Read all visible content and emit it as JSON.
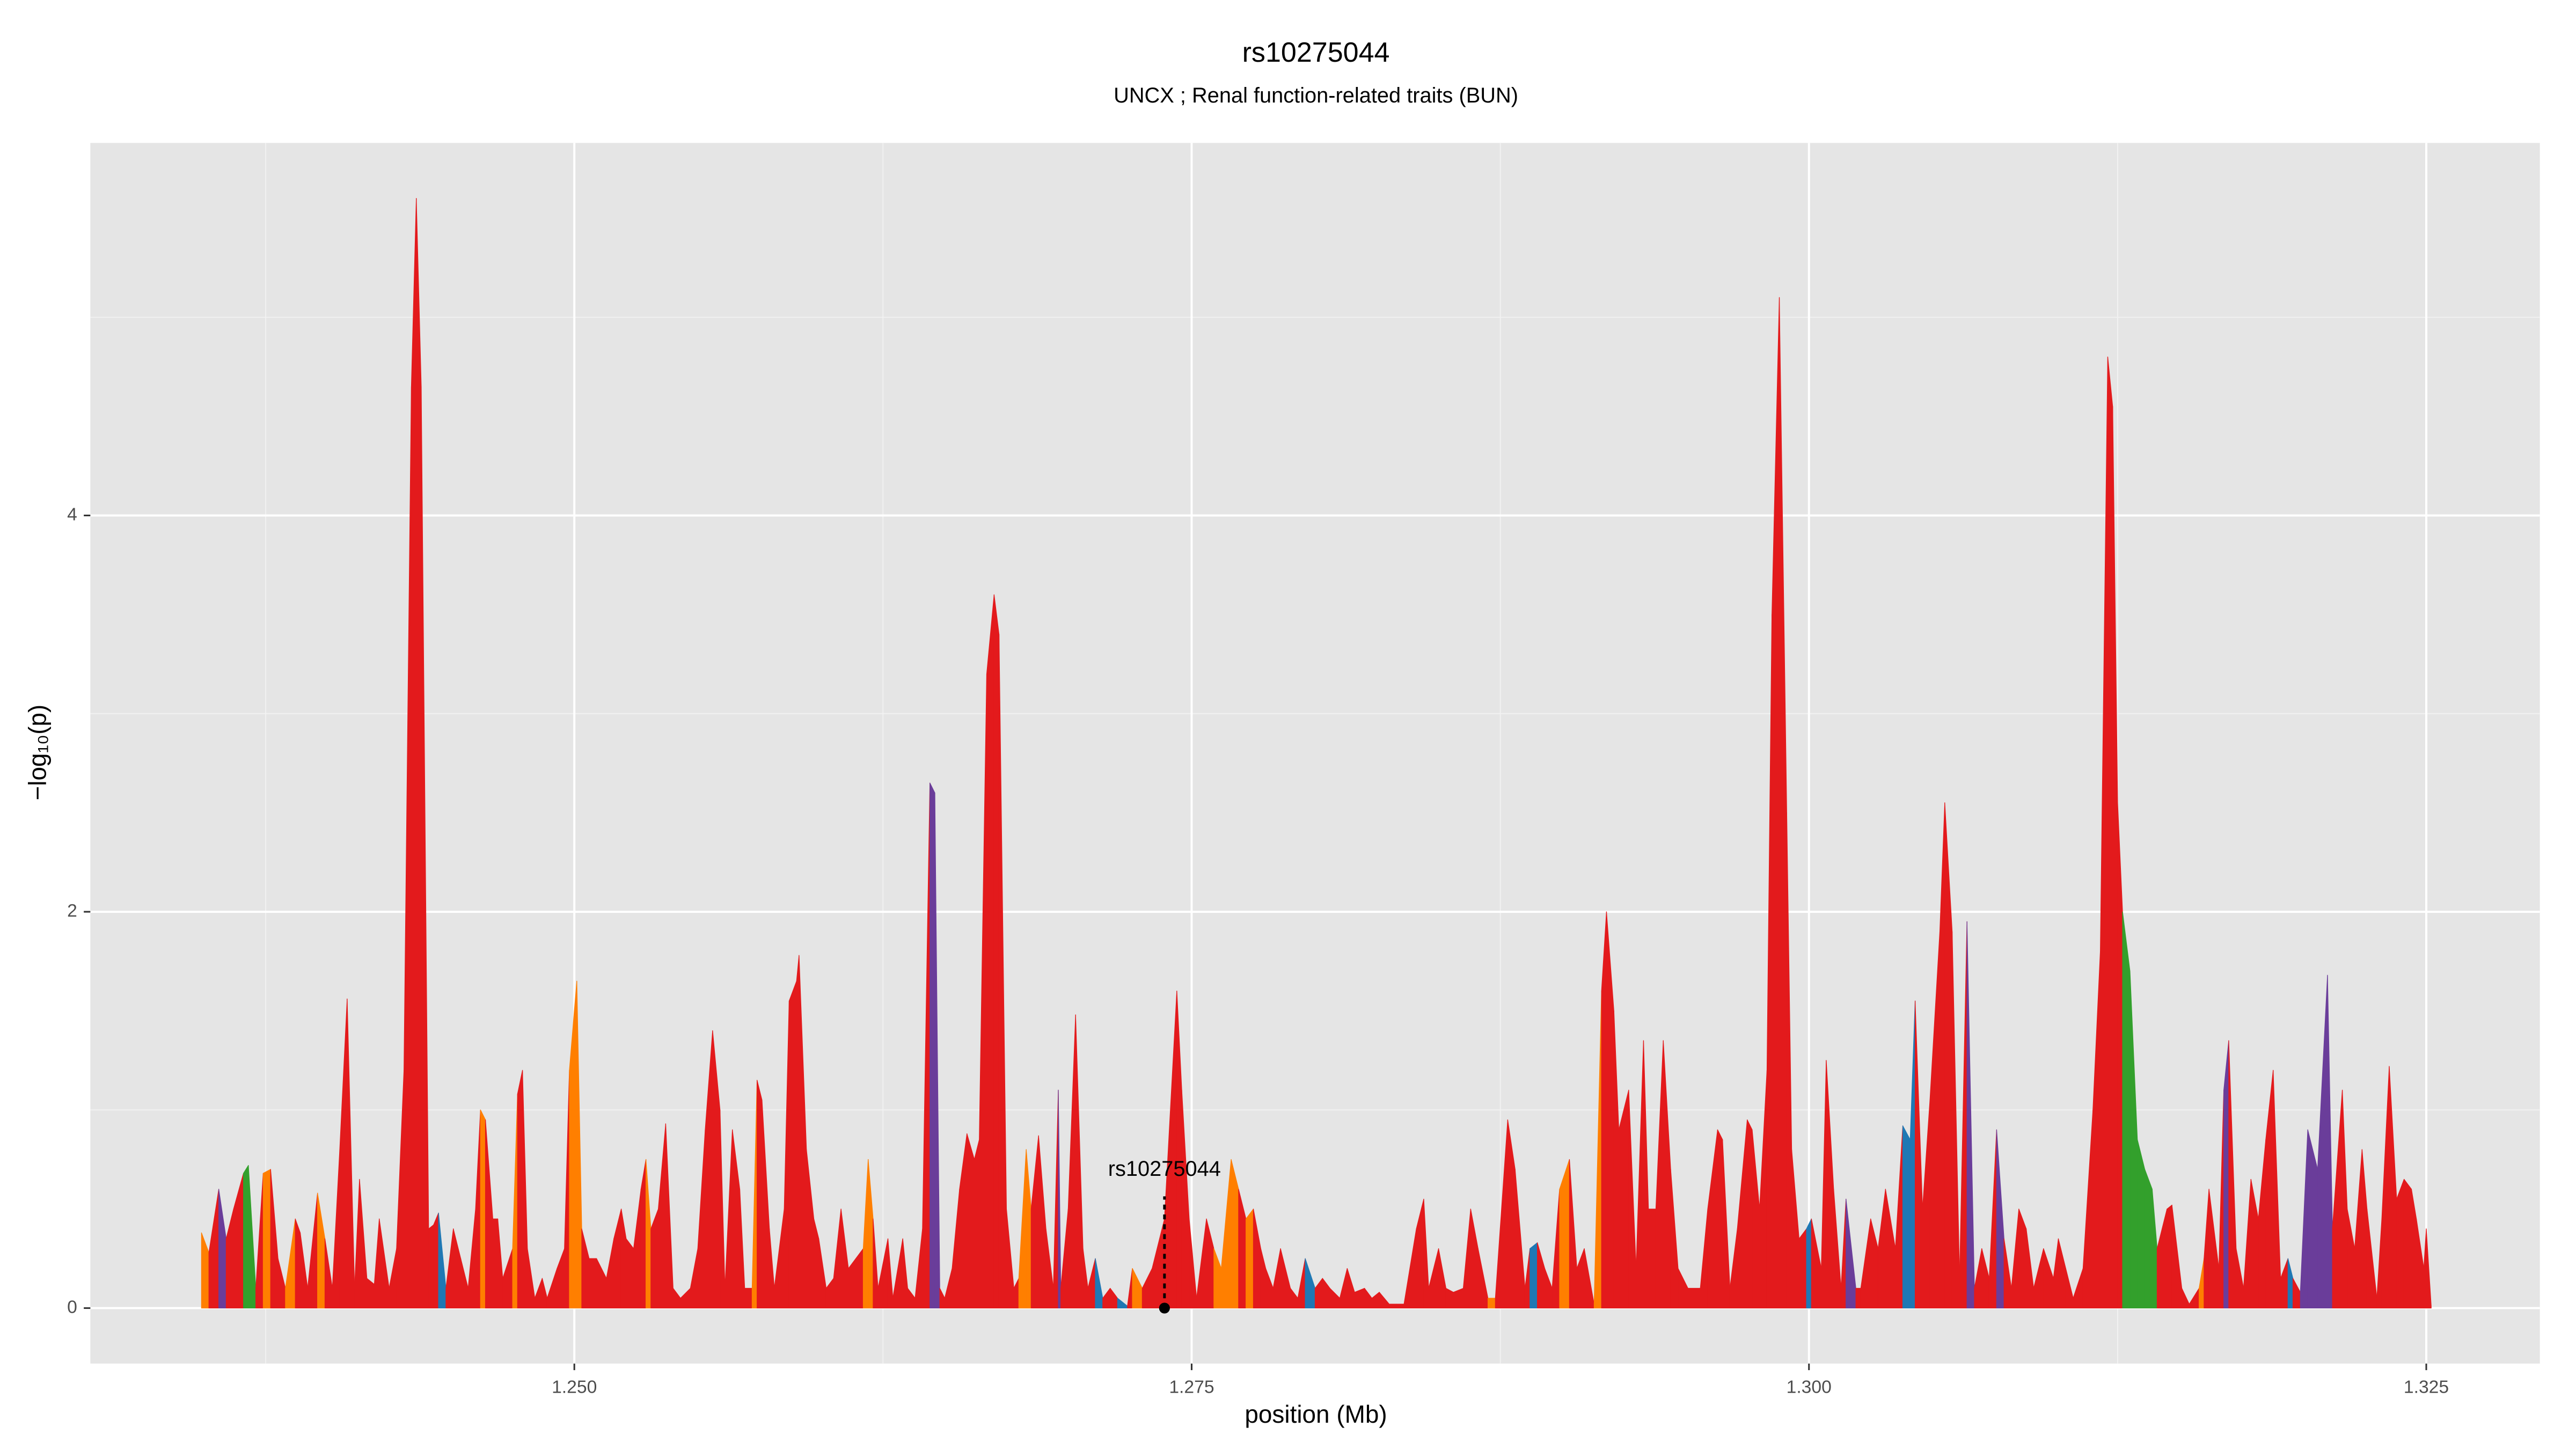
{
  "chart_data": {
    "type": "area",
    "title": "rs10275044",
    "subtitle": "UNCX ; Renal function-related traits (BUN)",
    "x_label": "position (Mb)",
    "y_label": "−log₁₀(p)",
    "xlim": [
      1.2304,
      1.3296
    ],
    "ylim": [
      -0.28,
      5.88
    ],
    "xticks": [
      {
        "value": 1.25,
        "label": "1.250"
      },
      {
        "value": 1.275,
        "label": "1.275"
      },
      {
        "value": 1.3,
        "label": "1.300"
      },
      {
        "value": 1.325,
        "label": "1.325"
      }
    ],
    "yticks": [
      0,
      2,
      4
    ],
    "x_minor_grid": [
      1.2375,
      1.2625,
      1.2875,
      1.3125
    ],
    "y_minor_grid": [
      1,
      3,
      5
    ],
    "grid": true,
    "annotation": {
      "text": "rs10275044",
      "x": 1.2739,
      "y": 0
    },
    "x": [
      1.2349,
      1.2352,
      1.2356,
      1.2359,
      1.2362,
      1.2366,
      1.2368,
      1.2371,
      1.2374,
      1.2377,
      1.238,
      1.2383,
      1.2387,
      1.2389,
      1.2392,
      1.2396,
      1.2399,
      1.2402,
      1.2405,
      1.2408,
      1.2411,
      1.2413,
      1.2416,
      1.2419,
      1.2421,
      1.2425,
      1.2428,
      1.2431,
      1.2434,
      1.2436,
      1.2438,
      1.2441,
      1.2443,
      1.2445,
      1.2448,
      1.2451,
      1.2454,
      1.2457,
      1.246,
      1.2462,
      1.2464,
      1.2467,
      1.2469,
      1.2471,
      1.2475,
      1.2477,
      1.2479,
      1.2481,
      1.2484,
      1.2487,
      1.2489,
      1.2493,
      1.2496,
      1.2498,
      1.2501,
      1.2503,
      1.2506,
      1.2509,
      1.2513,
      1.2516,
      1.2519,
      1.2521,
      1.2524,
      1.2527,
      1.2529,
      1.2531,
      1.2534,
      1.2537,
      1.254,
      1.2543,
      1.2547,
      1.255,
      1.2553,
      1.2556,
      1.2559,
      1.2561,
      1.2564,
      1.2567,
      1.2569,
      1.2572,
      1.2574,
      1.2576,
      1.2579,
      1.2581,
      1.2585,
      1.2587,
      1.259,
      1.2591,
      1.2594,
      1.2597,
      1.2599,
      1.2602,
      1.2605,
      1.2608,
      1.2611,
      1.2614,
      1.2617,
      1.2619,
      1.2621,
      1.2623,
      1.2627,
      1.2629,
      1.2633,
      1.2635,
      1.2638,
      1.2641,
      1.2644,
      1.2646,
      1.2648,
      1.265,
      1.2653,
      1.2656,
      1.2659,
      1.2662,
      1.2664,
      1.2667,
      1.267,
      1.2672,
      1.2675,
      1.2678,
      1.268,
      1.2683,
      1.2685,
      1.2688,
      1.2691,
      1.2694,
      1.2696,
      1.2697,
      1.27,
      1.2703,
      1.2706,
      1.2708,
      1.2711,
      1.2714,
      1.2717,
      1.272,
      1.2724,
      1.2726,
      1.273,
      1.2734,
      1.2739,
      1.2744,
      1.2746,
      1.2749,
      1.2752,
      1.2756,
      1.2759,
      1.2762,
      1.2766,
      1.2769,
      1.2772,
      1.2775,
      1.2778,
      1.278,
      1.2783,
      1.2786,
      1.279,
      1.2793,
      1.2796,
      1.28,
      1.2803,
      1.2806,
      1.281,
      1.2813,
      1.2816,
      1.282,
      1.2823,
      1.2826,
      1.283,
      1.2833,
      1.2836,
      1.2841,
      1.2844,
      1.2846,
      1.285,
      1.2853,
      1.2856,
      1.286,
      1.2863,
      1.2866,
      1.287,
      1.2873,
      1.2878,
      1.2881,
      1.2885,
      1.2887,
      1.289,
      1.2893,
      1.2896,
      1.2899,
      1.2903,
      1.2906,
      1.2909,
      1.2913,
      1.2916,
      1.2918,
      1.2921,
      1.2923,
      1.2927,
      1.293,
      1.2933,
      1.2935,
      1.2938,
      1.2941,
      1.2944,
      1.2947,
      1.2951,
      1.2956,
      1.2959,
      1.2963,
      1.2965,
      1.2968,
      1.2971,
      1.2975,
      1.2977,
      1.298,
      1.2983,
      1.2985,
      1.2988,
      1.2991,
      1.2993,
      1.2996,
      1.2999,
      1.3001,
      1.3005,
      1.3007,
      1.301,
      1.3013,
      1.3015,
      1.3019,
      1.3021,
      1.3025,
      1.3028,
      1.3031,
      1.3035,
      1.3038,
      1.3041,
      1.3043,
      1.3046,
      1.3049,
      1.3053,
      1.3055,
      1.3058,
      1.3061,
      1.3064,
      1.3067,
      1.307,
      1.3073,
      1.3076,
      1.3079,
      1.3082,
      1.3085,
      1.3088,
      1.3091,
      1.3095,
      1.3099,
      1.3101,
      1.3104,
      1.3107,
      1.3111,
      1.3115,
      1.3118,
      1.3121,
      1.3123,
      1.3125,
      1.3127,
      1.313,
      1.3133,
      1.3136,
      1.3139,
      1.3141,
      1.3145,
      1.3147,
      1.3151,
      1.3154,
      1.3158,
      1.316,
      1.3162,
      1.3166,
      1.3168,
      1.317,
      1.3173,
      1.3176,
      1.3179,
      1.3182,
      1.3185,
      1.3188,
      1.3191,
      1.3194,
      1.3196,
      1.3199,
      1.3202,
      1.3206,
      1.321,
      1.3212,
      1.3216,
      1.3218,
      1.3221,
      1.3224,
      1.3226,
      1.323,
      1.3232,
      1.3235,
      1.3238,
      1.3241,
      1.3244,
      1.3246,
      1.3249,
      1.325,
      1.3252
    ],
    "values": [
      0.38,
      0.28,
      0.6,
      0.35,
      0.5,
      0.68,
      0.72,
      0.1,
      0.68,
      0.7,
      0.25,
      0.1,
      0.45,
      0.38,
      0.1,
      0.58,
      0.35,
      0.1,
      0.8,
      1.56,
      0.1,
      0.65,
      0.15,
      0.12,
      0.45,
      0.1,
      0.3,
      1.2,
      4.65,
      5.6,
      4.65,
      0.4,
      0.42,
      0.48,
      0.1,
      0.4,
      0.25,
      0.1,
      0.5,
      1.0,
      0.95,
      0.45,
      0.45,
      0.15,
      0.3,
      1.08,
      1.2,
      0.3,
      0.05,
      0.15,
      0.05,
      0.2,
      0.3,
      1.2,
      1.65,
      0.4,
      0.25,
      0.25,
      0.15,
      0.35,
      0.5,
      0.35,
      0.3,
      0.6,
      0.75,
      0.4,
      0.5,
      0.93,
      0.1,
      0.05,
      0.1,
      0.3,
      0.9,
      1.4,
      1.0,
      0.1,
      0.9,
      0.6,
      0.1,
      0.1,
      1.15,
      1.05,
      0.4,
      0.1,
      0.5,
      1.55,
      1.65,
      1.78,
      0.8,
      0.45,
      0.35,
      0.1,
      0.15,
      0.5,
      0.2,
      0.25,
      0.3,
      0.75,
      0.45,
      0.1,
      0.35,
      0.05,
      0.35,
      0.1,
      0.05,
      0.4,
      2.65,
      2.6,
      0.1,
      0.05,
      0.2,
      0.6,
      0.88,
      0.75,
      0.85,
      3.2,
      3.6,
      3.4,
      0.5,
      0.1,
      0.15,
      0.8,
      0.5,
      0.87,
      0.4,
      0.1,
      1.1,
      0.1,
      0.5,
      1.48,
      0.3,
      0.1,
      0.25,
      0.05,
      0.1,
      0.05,
      0.01,
      0.2,
      0.1,
      0.2,
      0.45,
      1.6,
      1.1,
      0.45,
      0.05,
      0.45,
      0.3,
      0.2,
      0.75,
      0.6,
      0.45,
      0.5,
      0.3,
      0.2,
      0.1,
      0.3,
      0.1,
      0.05,
      0.25,
      0.1,
      0.15,
      0.1,
      0.05,
      0.2,
      0.08,
      0.1,
      0.05,
      0.08,
      0.02,
      0.02,
      0.02,
      0.4,
      0.55,
      0.1,
      0.3,
      0.1,
      0.08,
      0.1,
      0.5,
      0.3,
      0.05,
      0.05,
      0.95,
      0.7,
      0.1,
      0.3,
      0.33,
      0.2,
      0.1,
      0.6,
      0.75,
      0.2,
      0.3,
      0.02,
      1.6,
      2.0,
      1.5,
      0.9,
      1.1,
      0.2,
      1.35,
      0.5,
      0.5,
      1.35,
      0.7,
      0.2,
      0.1,
      0.1,
      0.5,
      0.9,
      0.85,
      0.1,
      0.4,
      0.95,
      0.9,
      0.5,
      1.2,
      3.5,
      5.1,
      2.5,
      0.8,
      0.35,
      0.4,
      0.45,
      0.2,
      1.25,
      0.6,
      0.1,
      0.55,
      0.1,
      0.1,
      0.45,
      0.3,
      0.6,
      0.3,
      0.92,
      0.85,
      1.55,
      0.5,
      1.05,
      1.9,
      2.55,
      1.9,
      0.15,
      1.95,
      0.1,
      0.3,
      0.15,
      0.9,
      0.35,
      0.1,
      0.5,
      0.4,
      0.1,
      0.3,
      0.15,
      0.35,
      0.2,
      0.05,
      0.2,
      1.0,
      1.8,
      4.8,
      4.55,
      2.55,
      2.0,
      1.7,
      0.85,
      0.7,
      0.6,
      0.3,
      0.5,
      0.52,
      0.1,
      0.02,
      0.1,
      0.25,
      0.6,
      0.2,
      1.1,
      1.35,
      0.3,
      0.1,
      0.65,
      0.45,
      0.85,
      1.2,
      0.15,
      0.25,
      0.15,
      0.08,
      0.9,
      0.7,
      1.68,
      0.4,
      1.1,
      0.5,
      0.3,
      0.8,
      0.5,
      0.05,
      0.45,
      1.22,
      0.55,
      0.65,
      0.6,
      0.45,
      0.2,
      0.4,
      0.01
    ],
    "colors": [
      "#ff7f00",
      "#e31a1c",
      "#6a3d9a",
      "#e31a1c",
      "#e31a1c",
      "#33a02c",
      "#33a02c",
      "#e31a1c",
      "#ff7f00",
      "#e31a1c",
      "#e31a1c",
      "#ff7f00",
      "#e31a1c",
      "#e31a1c",
      "#e31a1c",
      "#ff7f00",
      "#e31a1c",
      "#e31a1c",
      "#e31a1c",
      "#e31a1c",
      "#e31a1c",
      "#e31a1c",
      "#e31a1c",
      "#e31a1c",
      "#e31a1c",
      "#e31a1c",
      "#e31a1c",
      "#e31a1c",
      "#e31a1c",
      "#e31a1c",
      "#e31a1c",
      "#e31a1c",
      "#e31a1c",
      "#1f78b4",
      "#e31a1c",
      "#e31a1c",
      "#e31a1c",
      "#e31a1c",
      "#e31a1c",
      "#ff7f00",
      "#e31a1c",
      "#e31a1c",
      "#e31a1c",
      "#e31a1c",
      "#ff7f00",
      "#e31a1c",
      "#e31a1c",
      "#e31a1c",
      "#e31a1c",
      "#e31a1c",
      "#e31a1c",
      "#e31a1c",
      "#e31a1c",
      "#ff7f00",
      "#ff7f00",
      "#e31a1c",
      "#e31a1c",
      "#e31a1c",
      "#e31a1c",
      "#e31a1c",
      "#e31a1c",
      "#e31a1c",
      "#e31a1c",
      "#e31a1c",
      "#ff7f00",
      "#e31a1c",
      "#e31a1c",
      "#e31a1c",
      "#e31a1c",
      "#e31a1c",
      "#e31a1c",
      "#e31a1c",
      "#e31a1c",
      "#e31a1c",
      "#e31a1c",
      "#e31a1c",
      "#e31a1c",
      "#e31a1c",
      "#e31a1c",
      "#ff7f00",
      "#e31a1c",
      "#e31a1c",
      "#e31a1c",
      "#e31a1c",
      "#e31a1c",
      "#e31a1c",
      "#e31a1c",
      "#e31a1c",
      "#e31a1c",
      "#e31a1c",
      "#e31a1c",
      "#e31a1c",
      "#e31a1c",
      "#e31a1c",
      "#e31a1c",
      "#e31a1c",
      "#ff7f00",
      "#ff7f00",
      "#e31a1c",
      "#e31a1c",
      "#e31a1c",
      "#e31a1c",
      "#e31a1c",
      "#e31a1c",
      "#e31a1c",
      "#e31a1c",
      "#6a3d9a",
      "#6a3d9a",
      "#e31a1c",
      "#e31a1c",
      "#e31a1c",
      "#e31a1c",
      "#e31a1c",
      "#e31a1c",
      "#e31a1c",
      "#e31a1c",
      "#e31a1c",
      "#e31a1c",
      "#e31a1c",
      "#e31a1c",
      "#ff7f00",
      "#ff7f00",
      "#e31a1c",
      "#e31a1c",
      "#e31a1c",
      "#e31a1c",
      "#6a3d9a",
      "#e31a1c",
      "#e31a1c",
      "#e31a1c",
      "#e31a1c",
      "#e31a1c",
      "#1f78b4",
      "#e31a1c",
      "#e31a1c",
      "#1f78b4",
      "#e31a1c",
      "#ff7f00",
      "#e31a1c",
      "#e31a1c",
      "#e31a1c",
      "#e31a1c",
      "#e31a1c",
      "#e31a1c",
      "#e31a1c",
      "#e31a1c",
      "#ff7f00",
      "#ff7f00",
      "#ff7f00",
      "#e31a1c",
      "#ff7f00",
      "#e31a1c",
      "#e31a1c",
      "#e31a1c",
      "#e31a1c",
      "#e31a1c",
      "#e31a1c",
      "#e31a1c",
      "#1f78b4",
      "#e31a1c",
      "#e31a1c",
      "#e31a1c",
      "#e31a1c",
      "#e31a1c",
      "#e31a1c",
      "#e31a1c",
      "#e31a1c",
      "#e31a1c",
      "#e31a1c",
      "#e31a1c",
      "#e31a1c",
      "#e31a1c",
      "#e31a1c",
      "#e31a1c",
      "#e31a1c",
      "#e31a1c",
      "#e31a1c",
      "#e31a1c",
      "#e31a1c",
      "#e31a1c",
      "#ff7f00",
      "#e31a1c",
      "#e31a1c",
      "#e31a1c",
      "#e31a1c",
      "#1f78b4",
      "#e31a1c",
      "#e31a1c",
      "#e31a1c",
      "#ff7f00",
      "#e31a1c",
      "#e31a1c",
      "#e31a1c",
      "#ff7f00",
      "#e31a1c",
      "#e31a1c",
      "#e31a1c",
      "#e31a1c",
      "#e31a1c",
      "#e31a1c",
      "#e31a1c",
      "#e31a1c",
      "#e31a1c",
      "#e31a1c",
      "#e31a1c",
      "#e31a1c",
      "#e31a1c",
      "#e31a1c",
      "#e31a1c",
      "#e31a1c",
      "#e31a1c",
      "#e31a1c",
      "#e31a1c",
      "#e31a1c",
      "#e31a1c",
      "#e31a1c",
      "#e31a1c",
      "#e31a1c",
      "#e31a1c",
      "#e31a1c",
      "#e31a1c",
      "#e31a1c",
      "#1f78b4",
      "#e31a1c",
      "#e31a1c",
      "#e31a1c",
      "#e31a1c",
      "#e31a1c",
      "#6a3d9a",
      "#e31a1c",
      "#e31a1c",
      "#e31a1c",
      "#e31a1c",
      "#e31a1c",
      "#e31a1c",
      "#1f78b4",
      "#1f78b4",
      "#e31a1c",
      "#e31a1c",
      "#e31a1c",
      "#e31a1c",
      "#e31a1c",
      "#e31a1c",
      "#e31a1c",
      "#6a3d9a",
      "#e31a1c",
      "#e31a1c",
      "#e31a1c",
      "#6a3d9a",
      "#e31a1c",
      "#e31a1c",
      "#e31a1c",
      "#e31a1c",
      "#e31a1c",
      "#e31a1c",
      "#e31a1c",
      "#e31a1c",
      "#e31a1c",
      "#e31a1c",
      "#e31a1c",
      "#e31a1c",
      "#e31a1c",
      "#e31a1c",
      "#e31a1c",
      "#e31a1c",
      "#33a02c",
      "#33a02c",
      "#33a02c",
      "#33a02c",
      "#33a02c",
      "#e31a1c",
      "#e31a1c",
      "#e31a1c",
      "#e31a1c",
      "#e31a1c",
      "#ff7f00",
      "#e31a1c",
      "#e31a1c",
      "#e31a1c",
      "#6a3d9a",
      "#e31a1c",
      "#e31a1c",
      "#e31a1c",
      "#e31a1c",
      "#e31a1c",
      "#e31a1c",
      "#e31a1c",
      "#e31a1c",
      "#1f78b4",
      "#e31a1c",
      "#6a3d9a",
      "#6a3d9a",
      "#6a3d9a",
      "#6a3d9a",
      "#e31a1c",
      "#e31a1c",
      "#e31a1c",
      "#e31a1c",
      "#e31a1c",
      "#e31a1c",
      "#e31a1c",
      "#e31a1c",
      "#e31a1c",
      "#e31a1c",
      "#e31a1c",
      "#e31a1c",
      "#e31a1c",
      "#e31a1c",
      "#e31a1c",
      "#e31a1c"
    ]
  }
}
